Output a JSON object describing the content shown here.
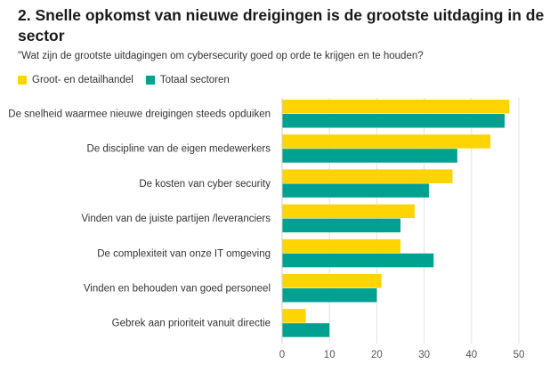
{
  "chart_data": {
    "type": "bar",
    "orientation": "horizontal",
    "title": "2. Snelle opkomst van nieuwe dreigingen is de grootste uitdaging in de sector",
    "subtitle": "\"Wat zijn de grootste uitdagingen om cybersecurity goed op orde te krijgen en te houden?",
    "categories": [
      "De snelheid waarmee nieuwe dreigingen steeds opduiken",
      "De discipline van de eigen medewerkers",
      "De kosten van cyber security",
      "Vinden van de juiste partijen /leveranciers",
      "De complexiteit van onze IT omgeving",
      "Vinden en behouden van goed personeel",
      "Gebrek aan prioriteit vanuit directie"
    ],
    "series": [
      {
        "name": "Groot- en detailhandel",
        "color": "#FFD400",
        "values": [
          48,
          44,
          36,
          28,
          25,
          21,
          5
        ]
      },
      {
        "name": "Totaal sectoren",
        "color": "#00A191",
        "values": [
          47,
          37,
          31,
          25,
          32,
          20,
          10
        ]
      }
    ],
    "xlim": [
      0,
      50
    ],
    "xticks": [
      0,
      10,
      20,
      30,
      40,
      50
    ],
    "grid": true,
    "legend": "top-left"
  }
}
